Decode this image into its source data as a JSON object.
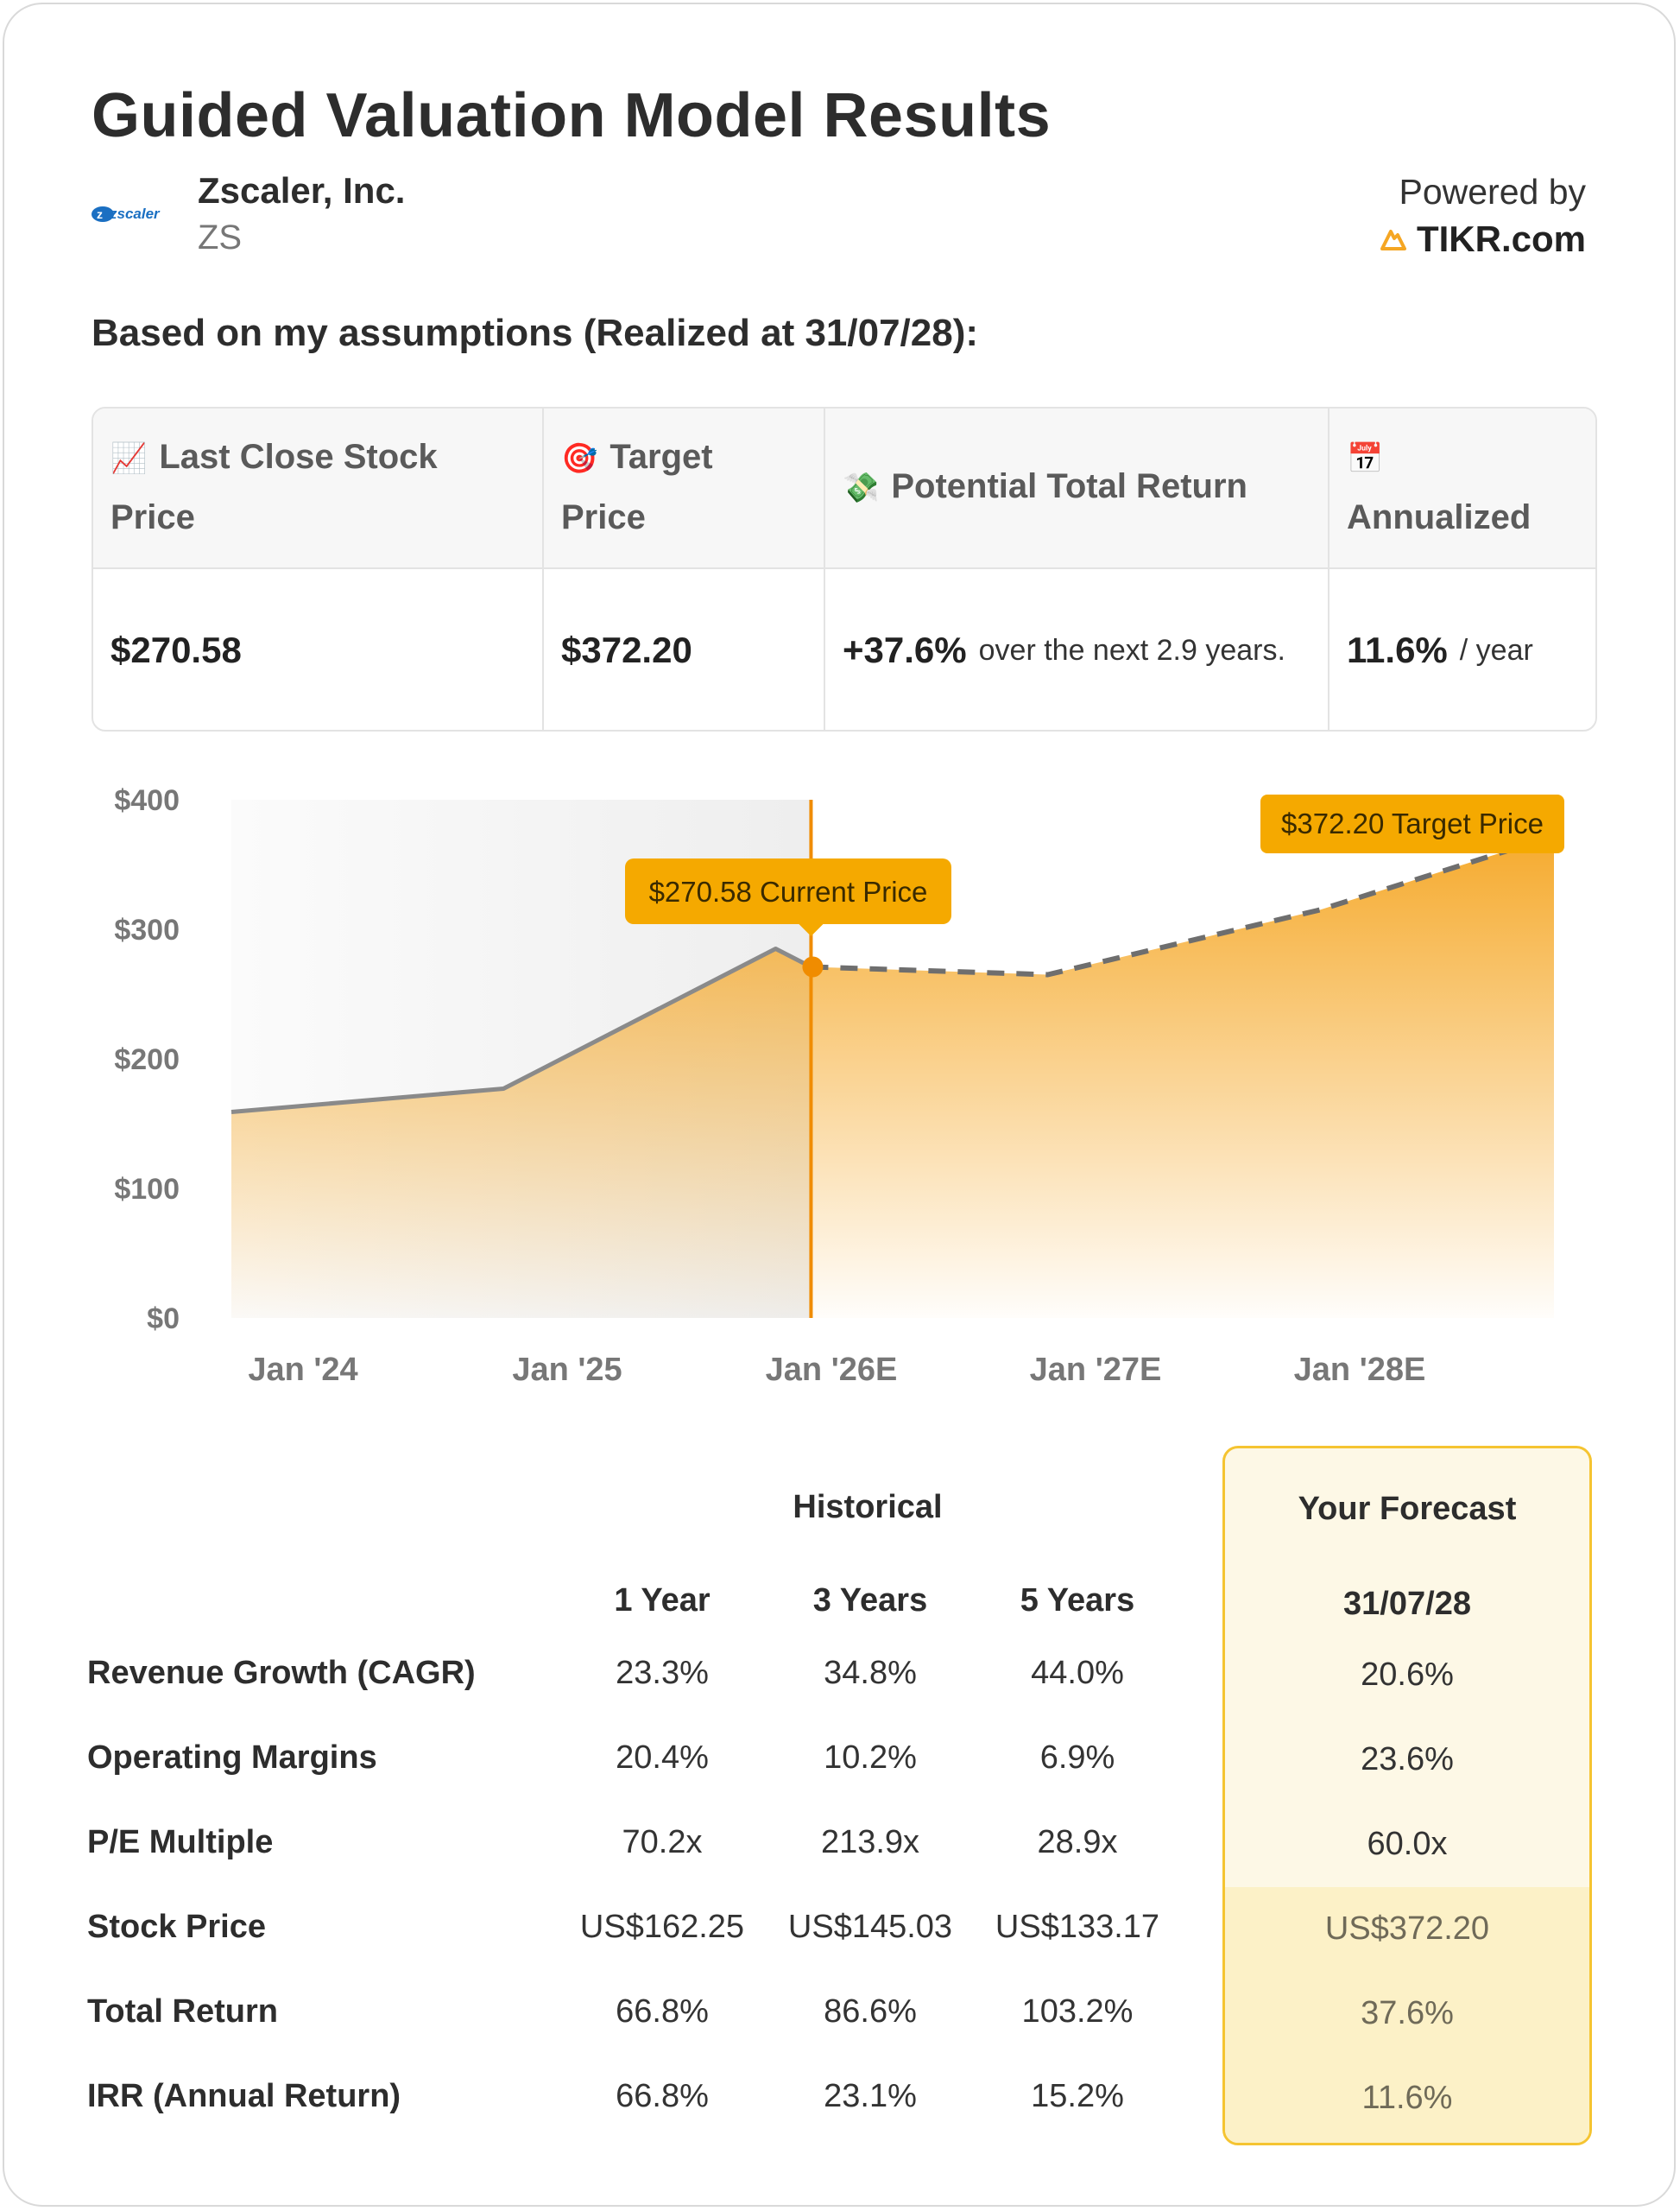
{
  "header": {
    "title": "Guided Valuation Model Results",
    "company_name": "Zscaler, Inc.",
    "ticker": "ZS",
    "logo_text": "zscaler",
    "powered_by": "Powered by",
    "brand": "TIKR.com",
    "subtitle": "Based on my assumptions (Realized at 31/07/28):"
  },
  "metrics": {
    "last_close": {
      "icon": "chart-increasing-icon",
      "label_line1": "Last Close Stock",
      "label_line2": "Price",
      "value": "$270.58"
    },
    "target": {
      "icon": "bullseye-icon",
      "label_line1": "Target",
      "label_line2": "Price",
      "value": "$372.20"
    },
    "total_return": {
      "icon": "money-with-wings-icon",
      "label": "Potential Total Return",
      "value": "+37.6%",
      "note": "over the next 2.9 years."
    },
    "annualized": {
      "icon": "calendar-icon",
      "label": "Annualized",
      "value": "11.6%",
      "note": "/ year"
    }
  },
  "chart_data": {
    "type": "area",
    "y_ticks": [
      "$400",
      "$300",
      "$200",
      "$100",
      "$0"
    ],
    "x_ticks": [
      "Jan '24",
      "Jan '25",
      "Jan '26E",
      "Jan '27E",
      "Jan '28E"
    ],
    "ylim": [
      0,
      400
    ],
    "x_range": [
      2023.72,
      2028.58
    ],
    "historical": {
      "x": [
        2023.72,
        2024.72,
        2025.72,
        2025.85
      ],
      "y": [
        159,
        177,
        285,
        271
      ]
    },
    "forecast": {
      "x": [
        2025.85,
        2026.72,
        2027.72,
        2028.58
      ],
      "y": [
        271,
        265,
        315,
        372
      ]
    },
    "current_marker_x": 2025.85,
    "current_price_label": "$270.58 Current Price",
    "target_price_label": "$372.20 Target Price",
    "colors": {
      "area": "#f5a623",
      "line_hist": "#8a8a8a",
      "line_forecast": "#6e6e6e",
      "marker": "#f08c00",
      "label_bg": "#f5a900",
      "shade": "#ececec"
    }
  },
  "stats": {
    "historical_title": "Historical",
    "forecast_title": "Your Forecast",
    "col_headers": [
      "1 Year",
      "3 Years",
      "5 Years"
    ],
    "forecast_date": "31/07/28",
    "rows": [
      {
        "label": "Revenue Growth (CAGR)",
        "values": [
          "23.3%",
          "34.8%",
          "44.0%"
        ],
        "forecast": "20.6%"
      },
      {
        "label": "Operating Margins",
        "values": [
          "20.4%",
          "10.2%",
          "6.9%"
        ],
        "forecast": "23.6%"
      },
      {
        "label": "P/E Multiple",
        "values": [
          "70.2x",
          "213.9x",
          "28.9x"
        ],
        "forecast": "60.0x"
      },
      {
        "label": "Stock Price",
        "values": [
          "US$162.25",
          "US$145.03",
          "US$133.17"
        ],
        "forecast": "US$372.20"
      },
      {
        "label": "Total Return",
        "values": [
          "66.8%",
          "86.6%",
          "103.2%"
        ],
        "forecast": "37.6%"
      },
      {
        "label": "IRR (Annual Return)",
        "values": [
          "66.8%",
          "23.1%",
          "15.2%"
        ],
        "forecast": "11.6%"
      }
    ]
  }
}
